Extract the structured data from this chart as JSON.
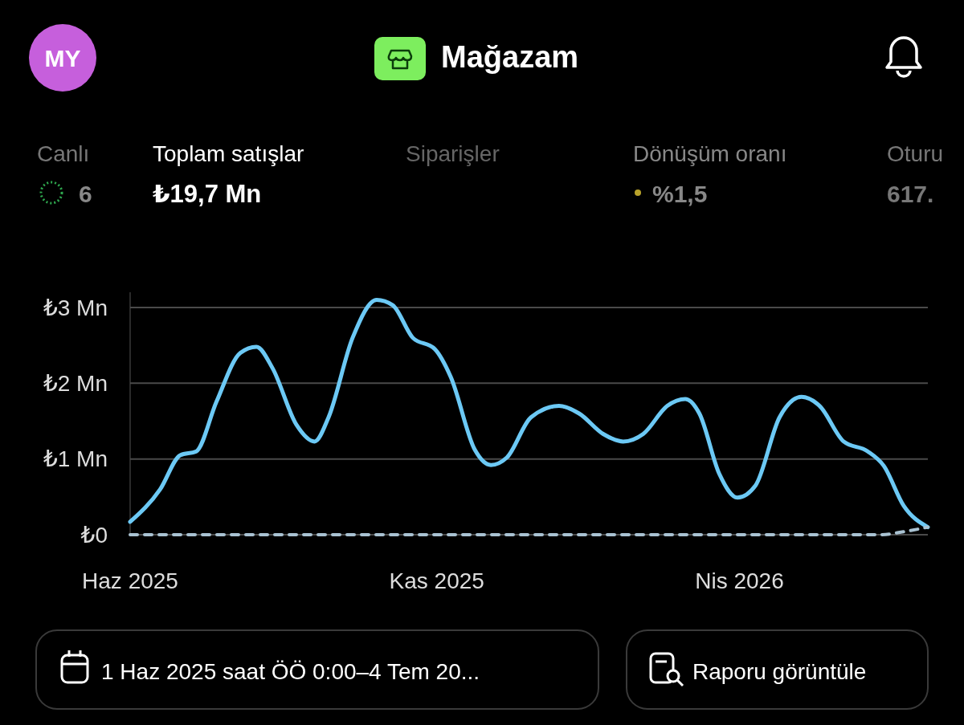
{
  "chart_data": {
    "type": "line",
    "title": "Mağazam",
    "x": [
      "2025-06-01",
      "2025-06-16",
      "2025-06-26",
      "2025-07-04",
      "2025-07-14",
      "2025-07-26",
      "2025-08-03",
      "2025-08-11",
      "2025-08-23",
      "2025-09-01",
      "2025-09-08",
      "2025-09-20",
      "2025-10-02",
      "2025-10-10",
      "2025-10-20",
      "2025-10-31",
      "2025-11-08",
      "2025-11-20",
      "2025-11-28",
      "2025-12-06",
      "2025-12-18",
      "2026-01-01",
      "2026-01-11",
      "2026-01-23",
      "2026-02-02",
      "2026-02-12",
      "2026-02-24",
      "2026-03-05",
      "2026-03-12",
      "2026-03-22",
      "2026-03-31",
      "2026-04-09",
      "2026-04-21",
      "2026-05-02",
      "2026-05-11",
      "2026-05-23",
      "2026-06-04",
      "2026-06-12",
      "2026-06-22",
      "2026-07-04"
    ],
    "series": [
      {
        "color": "#6cc9f5",
        "line_style": "solid",
        "values": [
          0.17,
          0.6,
          1.05,
          1.1,
          1.75,
          2.4,
          2.48,
          2.2,
          1.45,
          1.23,
          1.55,
          2.6,
          3.1,
          3.03,
          2.6,
          2.45,
          2.08,
          1.12,
          0.92,
          1.02,
          1.55,
          1.7,
          1.6,
          1.33,
          1.23,
          1.33,
          1.7,
          1.79,
          1.6,
          0.8,
          0.49,
          0.65,
          1.55,
          1.82,
          1.7,
          1.23,
          1.1,
          0.91,
          0.38,
          0.1
        ]
      },
      {
        "color": "#a9c2d2",
        "line_style": "dashed",
        "x": [
          "2025-06-01",
          "2026-06-10",
          "2026-06-22",
          "2026-07-04"
        ],
        "values": [
          0,
          0,
          0.04,
          0.1
        ]
      }
    ],
    "xlim": [
      "2025-06-01",
      "2026-07-04"
    ],
    "xticks": [
      {
        "value": "2025-06-01",
        "label": "Haz 2025"
      },
      {
        "value": "2025-11-01",
        "label": "Kas 2025"
      },
      {
        "value": "2026-04-01",
        "label": "Nis 2026"
      }
    ],
    "ylim": [
      0,
      3.2
    ],
    "yticks": [
      {
        "value": 0,
        "label": "₺0"
      },
      {
        "value": 1,
        "label": "₺1 Mn"
      },
      {
        "value": 2,
        "label": "₺2 Mn"
      },
      {
        "value": 3,
        "label": "₺3 Mn"
      }
    ],
    "grid": "y",
    "marker": "none",
    "annotations": [
      "MY",
      "Canlı",
      "6",
      "Toplam satışlar",
      "₺19,7 Mn",
      "Siparişler",
      "Dönüşüm oranı",
      "%1,5",
      "Oturu",
      "617.",
      "1 Haz 2025 saat ÖÖ 0:00–4 Tem 20...",
      "Raporu görüntüle"
    ]
  }
}
